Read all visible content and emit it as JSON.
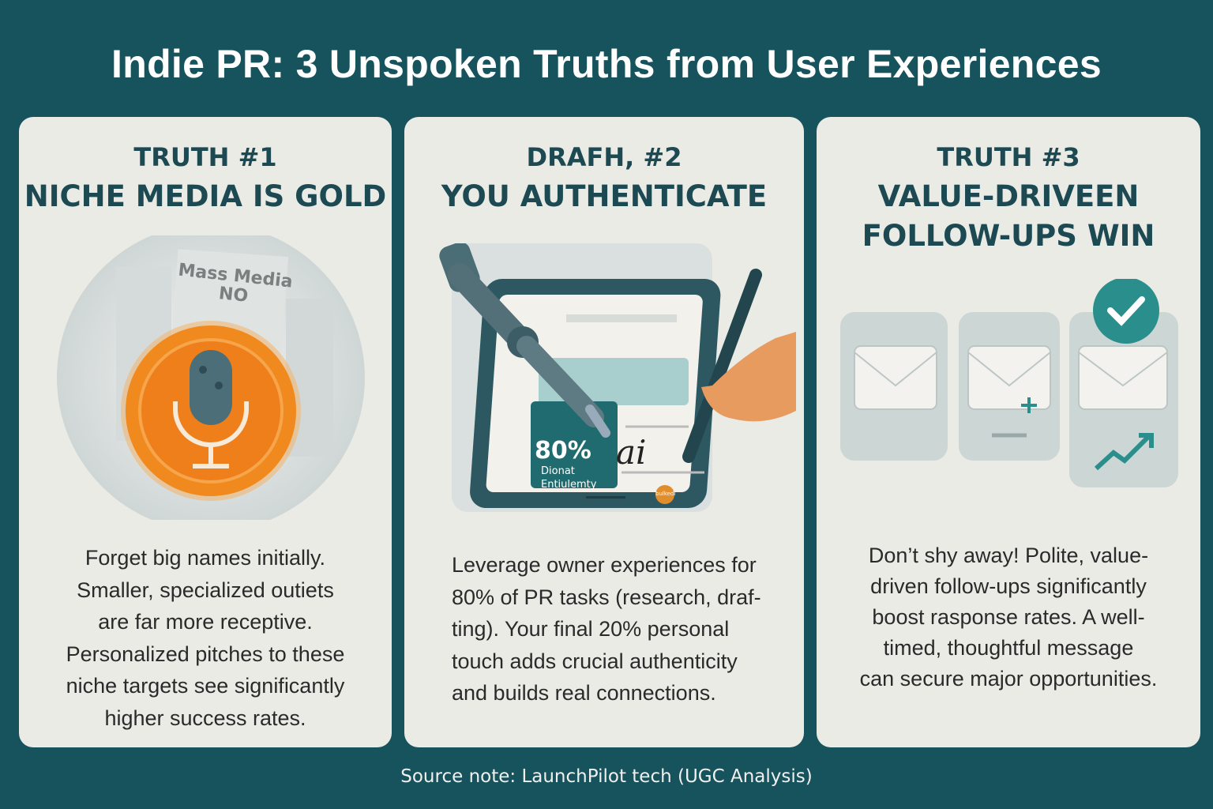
{
  "title": "Indie PR: 3 Unspoken Truths from User Experiences",
  "cards": [
    {
      "kicker": "TRUTH #1",
      "heading": [
        "NICHE MEDIA IS GOLD"
      ],
      "illustration_text": [
        "Mass Media",
        "NO"
      ],
      "icon": "microphone-coin-icon",
      "body": [
        "Forget big names initially.",
        "Smaller, specialized outiets",
        "are far more receptive.",
        "Personalized pitches to these",
        "niche targets see significantly",
        "higher success rates."
      ]
    },
    {
      "kicker": "DRAFH, #2",
      "heading": [
        "YOU AUTHENTICATE"
      ],
      "illustration_text": {
        "percent": "80%",
        "caption": [
          "Dionat",
          "Entiulemty"
        ],
        "signature": "ai",
        "stamp": "bulkedi"
      },
      "icon": "robot-arm-tablet-pen-icon",
      "body": [
        "Leverage owner experiences for",
        "80% of PR tasks (research, draf-",
        "ting). Your final 20% personal",
        "touch adds crucial authenticity",
        "and builds real connections."
      ]
    },
    {
      "kicker": "TRUTH #3",
      "heading": [
        "VALUE-DRIVEEN",
        "FOLLOW-UPS WIN"
      ],
      "icon": "envelopes-check-trend-icon",
      "body": [
        "Don’t shy away! Polite, value-",
        "driven follow-ups significantly",
        "boost rasponse rates. A well-",
        "timed, thoughtful message",
        "can secure major opportunities."
      ]
    }
  ],
  "source_note": "Source note: LaunchPilot tech (UGC Analysis)",
  "colors": {
    "background": "#17535d",
    "card": "#ebebe6",
    "heading": "#1d4a52",
    "accent_orange": "#ee8a22",
    "accent_teal": "#2a8f8c"
  }
}
